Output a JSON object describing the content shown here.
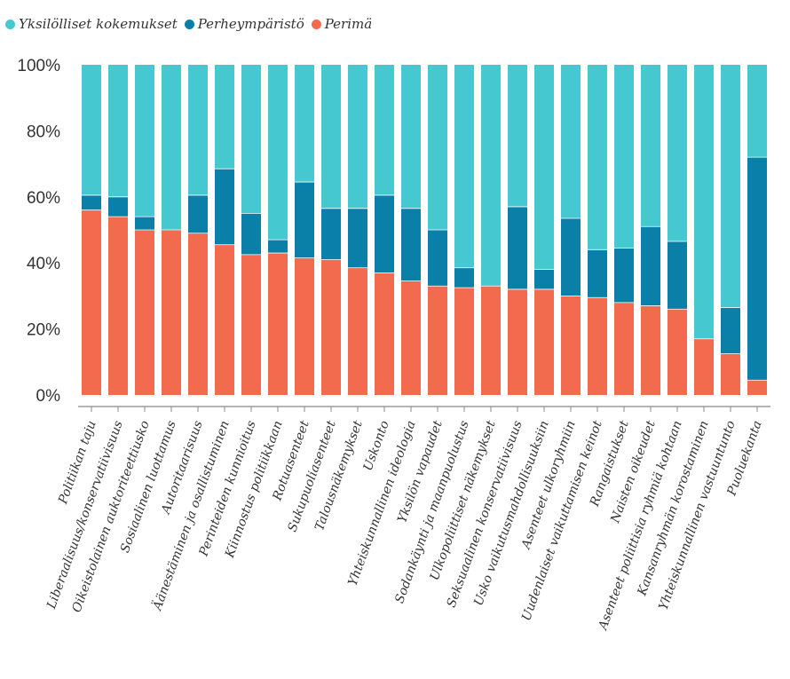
{
  "chart_data": {
    "type": "bar",
    "stacked": true,
    "title": "",
    "xlabel": "",
    "ylabel": "",
    "ylim": [
      0,
      100
    ],
    "yticks": [
      "0%",
      "20%",
      "40%",
      "60%",
      "80%",
      "100%"
    ],
    "legend_position": "top-left",
    "categories": [
      "Politiikan taju",
      "Liberaalisuus/konservatiivisuus",
      "Oikeistolainen auktoriteettiusko",
      "Sosiaalinen luottamus",
      "Autoritaarisuus",
      "Äänestäminen ja osallistuminen",
      "Perinteiden kunnioitus",
      "Kiinnostus politiikkaan",
      "Rotuasenteet",
      "Sukupuoliasenteet",
      "Talousnäkemykset",
      "Uskonto",
      "Yhteiskunnallinen ideologia",
      "Yksilön vapaudet",
      "Sodankäynti ja maanpuolustus",
      "Ulkopoliittiset näkemykset",
      "Seksuaalinen konservatiivisuus",
      "Usko vaikutusmahdollisuuksiin",
      "Asenteet ulkoryhmiin",
      "Uudenlaiset vaikuttamisen keinot",
      "Rangaistukset",
      "Naisten oikeudet",
      "Asenteet poliittisia ryhmiä kohtaan",
      "Kansanryhmän korostaminen",
      "Yhteiskunnallinen vastuuntunto",
      "Puoluekanta"
    ],
    "series": [
      {
        "name": "Perimä",
        "color": "#f26b4e",
        "values": [
          56,
          54,
          50,
          50,
          49,
          45.5,
          42.5,
          43,
          41.5,
          41,
          38.5,
          37,
          34.5,
          33,
          32.5,
          33,
          32,
          32,
          30,
          29.5,
          28,
          27,
          26,
          17,
          12.5,
          4.5
        ]
      },
      {
        "name": "Perheympäristö",
        "color": "#0a7fa8",
        "values": [
          4.5,
          6,
          4,
          0,
          11.5,
          23,
          12.5,
          4,
          23,
          15.5,
          18,
          23.5,
          22,
          17,
          6,
          0,
          25,
          6,
          23.5,
          14.5,
          16.5,
          24,
          20.5,
          0,
          14,
          67.5
        ]
      },
      {
        "name": "Yksilölliset kokemukset",
        "color": "#45c8d0",
        "values": [
          39.5,
          40,
          46,
          50,
          39.5,
          31.5,
          45,
          53,
          35.5,
          43.5,
          43.5,
          39.5,
          43.5,
          50,
          61.5,
          67,
          43,
          62,
          46.5,
          56,
          55.5,
          49,
          53.5,
          83,
          73.5,
          28
        ]
      }
    ],
    "legend": [
      "Yksilölliset kokemukset",
      "Perheympäristö",
      "Perimä"
    ]
  }
}
